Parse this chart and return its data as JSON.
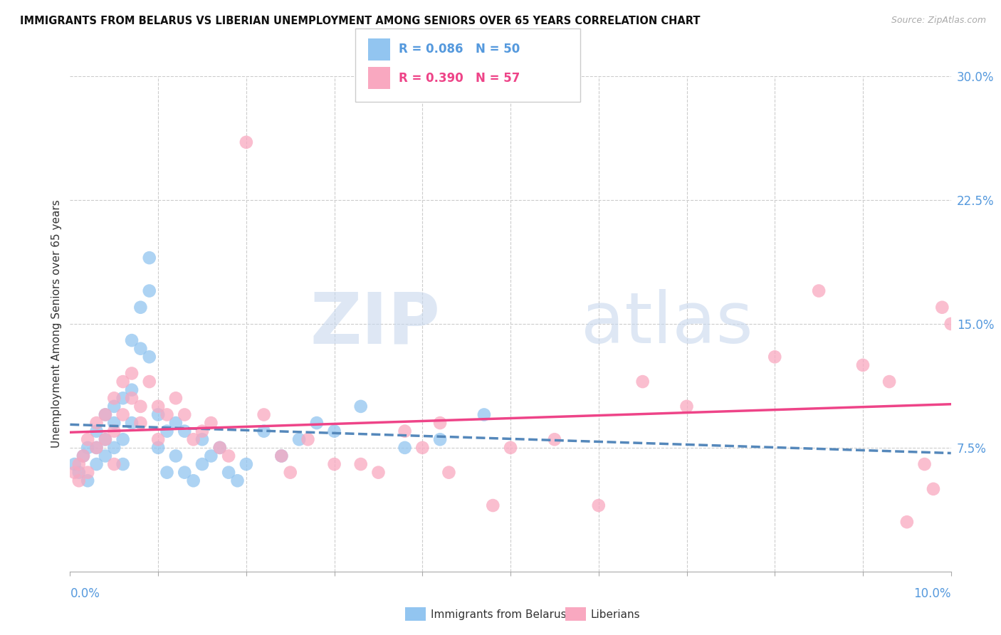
{
  "title": "IMMIGRANTS FROM BELARUS VS LIBERIAN UNEMPLOYMENT AMONG SENIORS OVER 65 YEARS CORRELATION CHART",
  "source": "Source: ZipAtlas.com",
  "ylabel": "Unemployment Among Seniors over 65 years",
  "xlim": [
    0.0,
    0.1
  ],
  "ylim": [
    0.0,
    0.3
  ],
  "yticks": [
    0.0,
    0.075,
    0.15,
    0.225,
    0.3
  ],
  "ytick_labels": [
    "",
    "7.5%",
    "15.0%",
    "22.5%",
    "30.0%"
  ],
  "legend_label_blue": "Immigrants from Belarus",
  "legend_label_pink": "Liberians",
  "r_blue": 0.086,
  "n_blue": 50,
  "r_pink": 0.39,
  "n_pink": 57,
  "color_blue": "#92C5F0",
  "color_pink": "#F9A8C0",
  "line_blue": "#5588BB",
  "line_pink": "#EE4488",
  "blue_x": [
    0.0005,
    0.001,
    0.0015,
    0.002,
    0.002,
    0.003,
    0.003,
    0.003,
    0.004,
    0.004,
    0.004,
    0.005,
    0.005,
    0.005,
    0.006,
    0.006,
    0.006,
    0.007,
    0.007,
    0.007,
    0.008,
    0.008,
    0.009,
    0.009,
    0.009,
    0.01,
    0.01,
    0.011,
    0.011,
    0.012,
    0.012,
    0.013,
    0.013,
    0.014,
    0.015,
    0.015,
    0.016,
    0.017,
    0.018,
    0.019,
    0.02,
    0.022,
    0.024,
    0.026,
    0.028,
    0.03,
    0.033,
    0.038,
    0.042,
    0.047
  ],
  "blue_y": [
    0.065,
    0.06,
    0.07,
    0.055,
    0.075,
    0.065,
    0.085,
    0.075,
    0.095,
    0.08,
    0.07,
    0.1,
    0.09,
    0.075,
    0.105,
    0.08,
    0.065,
    0.11,
    0.09,
    0.14,
    0.135,
    0.16,
    0.17,
    0.13,
    0.19,
    0.095,
    0.075,
    0.085,
    0.06,
    0.09,
    0.07,
    0.085,
    0.06,
    0.055,
    0.08,
    0.065,
    0.07,
    0.075,
    0.06,
    0.055,
    0.065,
    0.085,
    0.07,
    0.08,
    0.09,
    0.085,
    0.1,
    0.075,
    0.08,
    0.095
  ],
  "pink_x": [
    0.0005,
    0.001,
    0.001,
    0.0015,
    0.002,
    0.002,
    0.003,
    0.003,
    0.004,
    0.004,
    0.005,
    0.005,
    0.005,
    0.006,
    0.006,
    0.007,
    0.007,
    0.008,
    0.008,
    0.009,
    0.01,
    0.01,
    0.011,
    0.012,
    0.013,
    0.014,
    0.015,
    0.016,
    0.017,
    0.018,
    0.02,
    0.022,
    0.024,
    0.025,
    0.027,
    0.03,
    0.033,
    0.035,
    0.038,
    0.04,
    0.042,
    0.043,
    0.048,
    0.05,
    0.055,
    0.06,
    0.065,
    0.07,
    0.08,
    0.085,
    0.09,
    0.093,
    0.095,
    0.097,
    0.098,
    0.099,
    0.1
  ],
  "pink_y": [
    0.06,
    0.065,
    0.055,
    0.07,
    0.08,
    0.06,
    0.09,
    0.075,
    0.095,
    0.08,
    0.105,
    0.085,
    0.065,
    0.115,
    0.095,
    0.105,
    0.12,
    0.1,
    0.09,
    0.115,
    0.1,
    0.08,
    0.095,
    0.105,
    0.095,
    0.08,
    0.085,
    0.09,
    0.075,
    0.07,
    0.26,
    0.095,
    0.07,
    0.06,
    0.08,
    0.065,
    0.065,
    0.06,
    0.085,
    0.075,
    0.09,
    0.06,
    0.04,
    0.075,
    0.08,
    0.04,
    0.115,
    0.1,
    0.13,
    0.17,
    0.125,
    0.115,
    0.03,
    0.065,
    0.05,
    0.16,
    0.15
  ]
}
